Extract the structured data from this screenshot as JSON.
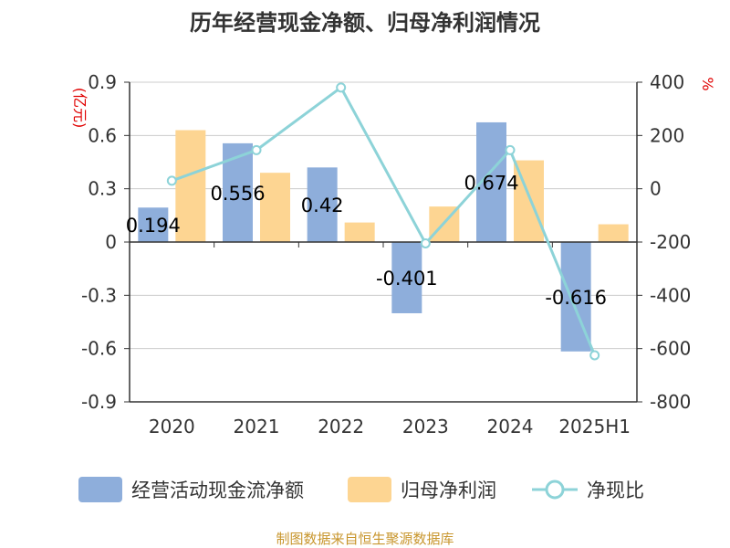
{
  "chart_data": {
    "type": "bar",
    "title": "历年经营现金净额、归母净利润情况",
    "categories": [
      "2020",
      "2021",
      "2022",
      "2023",
      "2024",
      "2025H1"
    ],
    "y_left": {
      "unit": "(亿元)",
      "ylim": [
        -0.9,
        0.9
      ],
      "ticks": [
        "0.9",
        "0.6",
        "0.3",
        "0",
        "-0.3",
        "-0.6",
        "-0.9"
      ]
    },
    "y_right": {
      "unit": "%",
      "ylim": [
        -800,
        400
      ],
      "ticks": [
        "400",
        "200",
        "0",
        "-200",
        "-400",
        "-600",
        "-800"
      ]
    },
    "series": [
      {
        "name": "经营活动现金流净额",
        "type": "bar",
        "axis": "left",
        "color": "#8eaedb",
        "values": [
          0.194,
          0.556,
          0.42,
          -0.401,
          0.674,
          -0.616
        ],
        "labels": [
          "0.194",
          "0.556",
          "0.42",
          "-0.401",
          "0.674",
          "-0.616"
        ]
      },
      {
        "name": "归母净利润",
        "type": "bar",
        "axis": "left",
        "color": "#fdd592",
        "values": [
          0.63,
          0.39,
          0.11,
          0.2,
          0.46,
          0.1
        ]
      },
      {
        "name": "净现比",
        "type": "line",
        "axis": "right",
        "color": "#8dd3d8",
        "values": [
          30,
          145,
          380,
          -205,
          145,
          -625
        ]
      }
    ],
    "grid": true,
    "legend_position": "bottom",
    "source": "制图数据来自恒生聚源数据库"
  }
}
